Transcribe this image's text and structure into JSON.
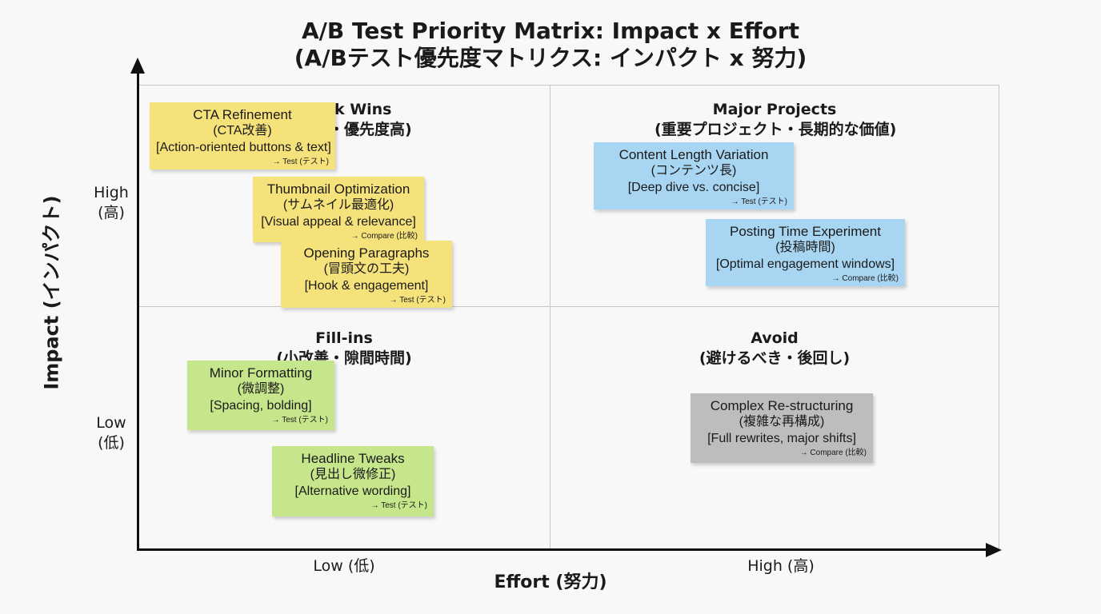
{
  "title": {
    "line1": "A/B Test Priority Matrix: Impact x Effort",
    "line2": "(A/Bテスト優先度マトリクス: インパクト x 努力)"
  },
  "y_axis": {
    "title": "Impact (インパクト)",
    "high": "High",
    "high_jp": "(高)",
    "low": "Low",
    "low_jp": "(低)"
  },
  "x_axis": {
    "title": "Effort (努力)",
    "low": "Low (低)",
    "high": "High (高)"
  },
  "quadrants": {
    "quick_wins": {
      "title": "Quick Wins",
      "subtitle": "(即効性・優先度高)"
    },
    "major_projects": {
      "title": "Major Projects",
      "subtitle": "(重要プロジェクト・長期的な価値)"
    },
    "fill_ins": {
      "title": "Fill-ins",
      "subtitle": "(小改善・隙間時間)"
    },
    "avoid": {
      "title": "Avoid",
      "subtitle": "(避けるべき・後回し)"
    }
  },
  "notes": [
    {
      "title": "CTA Refinement",
      "jp": "(CTA改善)",
      "desc": "[Action-oriented buttons & text]",
      "action": "→ Test (テスト)",
      "color": "#f6e27a"
    },
    {
      "title": "Thumbnail Optimization",
      "jp": "(サムネイル最適化)",
      "desc": "[Visual appeal & relevance]",
      "action": "→ Compare (比較)",
      "color": "#f6e27a"
    },
    {
      "title": "Opening Paragraphs",
      "jp": "(冒頭文の工夫)",
      "desc": "[Hook & engagement]",
      "action": "→ Test (テスト)",
      "color": "#f6e27a"
    },
    {
      "title": "Content Length Variation",
      "jp": "(コンテンツ長)",
      "desc": "[Deep dive vs. concise]",
      "action": "→ Test (テスト)",
      "color": "#a8d6f2"
    },
    {
      "title": "Posting Time Experiment",
      "jp": "(投稿時間)",
      "desc": "[Optimal engagement windows]",
      "action": "→ Compare (比較)",
      "color": "#a8d6f2"
    },
    {
      "title": "Minor Formatting",
      "jp": "(微調整)",
      "desc": "[Spacing, bolding]",
      "action": "→ Test (テスト)",
      "color": "#c5e68a"
    },
    {
      "title": "Headline Tweaks",
      "jp": "(見出し微修正)",
      "desc": "[Alternative wording]",
      "action": "→ Test (テスト)",
      "color": "#c5e68a"
    },
    {
      "title": "Complex Re-structuring",
      "jp": "(複雑な再構成)",
      "desc": "[Full rewrites, major shifts]",
      "action": "→ Compare (比較)",
      "color": "#bdbdbd"
    }
  ]
}
